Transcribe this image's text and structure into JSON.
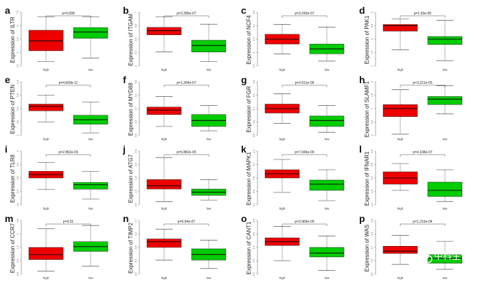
{
  "colors": {
    "high": "#ee0000",
    "low": "#00cc00",
    "line": "#333333"
  },
  "watermark": {
    "text": "中科生信",
    "icon": "wechat-icon"
  },
  "chart_data": [
    {
      "letter": "a",
      "type": "box",
      "gene": "ILTR",
      "ylabel": "Expression of ILTR",
      "categories": [
        "high",
        "low"
      ],
      "pvalue": "p=0.008",
      "ylim": [
        1.5,
        7.5
      ],
      "boxes": [
        {
          "min": 2.0,
          "q1": 3.2,
          "median": 4.3,
          "q3": 5.5,
          "max": 7.0
        },
        {
          "min": 2.4,
          "q1": 4.6,
          "median": 5.3,
          "q3": 5.8,
          "max": 7.0
        }
      ]
    },
    {
      "letter": "b",
      "type": "box",
      "gene": "ITGAM",
      "ylabel": "Expression of ITGAM",
      "categories": [
        "high",
        "low"
      ],
      "pvalue": "p=3.286e-07",
      "ylim": [
        2.0,
        7.0
      ],
      "boxes": [
        {
          "min": 3.3,
          "q1": 4.9,
          "median": 5.3,
          "q3": 5.6,
          "max": 6.6
        },
        {
          "min": 2.4,
          "q1": 3.3,
          "median": 3.9,
          "q3": 4.4,
          "max": 5.9
        }
      ]
    },
    {
      "letter": "c",
      "type": "box",
      "gene": "NCF4",
      "ylabel": "Expression of NCF4",
      "categories": [
        "high",
        "low"
      ],
      "pvalue": "p=3.243e-07",
      "ylim": [
        3.4,
        5.6
      ],
      "boxes": [
        {
          "min": 3.9,
          "q1": 4.3,
          "median": 4.5,
          "q3": 4.7,
          "max": 5.1
        },
        {
          "min": 3.6,
          "q1": 3.9,
          "median": 4.1,
          "q3": 4.3,
          "max": 5.0
        }
      ]
    },
    {
      "letter": "d",
      "type": "box",
      "gene": "PAK1",
      "ylabel": "Expression of PAK1",
      "categories": [
        "high",
        "low"
      ],
      "pvalue": "p=1.93e-05",
      "ylim": [
        1.0,
        3.0
      ],
      "boxes": [
        {
          "min": 1.6,
          "q1": 2.3,
          "median": 2.5,
          "q3": 2.55,
          "max": 2.75
        },
        {
          "min": 1.2,
          "q1": 1.8,
          "median": 2.0,
          "q3": 2.1,
          "max": 2.7
        }
      ]
    },
    {
      "letter": "e",
      "type": "box",
      "gene": "PTEN",
      "ylabel": "Expression of PTEN",
      "categories": [
        "high",
        "low"
      ],
      "pvalue": "p=4.669e-11",
      "ylim": [
        4.0,
        6.4
      ],
      "boxes": [
        {
          "min": 4.6,
          "q1": 5.1,
          "median": 5.3,
          "q3": 5.4,
          "max": 5.8
        },
        {
          "min": 4.1,
          "q1": 4.5,
          "median": 4.7,
          "q3": 4.9,
          "max": 5.5
        }
      ]
    },
    {
      "letter": "f",
      "type": "box",
      "gene": "MYD88",
      "ylabel": "Expression of MYD88",
      "categories": [
        "high",
        "low"
      ],
      "pvalue": "p=1.354e-07",
      "ylim": [
        3.8,
        5.6
      ],
      "boxes": [
        {
          "min": 4.1,
          "q1": 4.5,
          "median": 4.65,
          "q3": 4.75,
          "max": 5.1
        },
        {
          "min": 3.95,
          "q1": 4.1,
          "median": 4.3,
          "q3": 4.5,
          "max": 4.8
        }
      ]
    },
    {
      "letter": "g",
      "type": "box",
      "gene": "FGR",
      "ylabel": "Expression of FGR",
      "categories": [
        "high",
        "low"
      ],
      "pvalue": "p=2.611e-09",
      "ylim": [
        3.8,
        5.6
      ],
      "boxes": [
        {
          "min": 4.2,
          "q1": 4.55,
          "median": 4.7,
          "q3": 4.85,
          "max": 5.2
        },
        {
          "min": 3.9,
          "q1": 4.1,
          "median": 4.3,
          "q3": 4.45,
          "max": 4.8
        }
      ]
    },
    {
      "letter": "h",
      "type": "box",
      "gene": "SLAMF1",
      "ylabel": "Expression of SLAMF1",
      "categories": [
        "high",
        "low"
      ],
      "pvalue": "p=3.221e-05",
      "ylim": [
        0.0,
        2.0
      ],
      "boxes": [
        {
          "min": 0.05,
          "q1": 0.7,
          "median": 1.0,
          "q3": 1.15,
          "max": 1.7
        },
        {
          "min": 0.8,
          "q1": 1.15,
          "median": 1.35,
          "q3": 1.45,
          "max": 1.85
        }
      ]
    },
    {
      "letter": "i",
      "type": "box",
      "gene": "TLR8",
      "ylabel": "Expression of TLR8",
      "categories": [
        "high",
        "low"
      ],
      "pvalue": "p=2.862e-09",
      "ylim": [
        1.6,
        4.0
      ],
      "boxes": [
        {
          "min": 2.3,
          "q1": 2.8,
          "median": 2.95,
          "q3": 3.1,
          "max": 3.5
        },
        {
          "min": 1.85,
          "q1": 2.3,
          "median": 2.5,
          "q3": 2.6,
          "max": 3.1
        }
      ]
    },
    {
      "letter": "j",
      "type": "box",
      "gene": "ATG7",
      "ylabel": "Expression of ATG7",
      "categories": [
        "high",
        "low"
      ],
      "pvalue": "p=5.882e-05",
      "ylim": [
        0.9,
        2.6
      ],
      "boxes": [
        {
          "min": 1.0,
          "q1": 1.4,
          "median": 1.5,
          "q3": 1.7,
          "max": 2.4
        },
        {
          "min": 1.05,
          "q1": 1.2,
          "median": 1.3,
          "q3": 1.4,
          "max": 1.7
        }
      ]
    },
    {
      "letter": "k",
      "type": "box",
      "gene": "MAPK1",
      "ylabel": "Expression of MAPK1",
      "categories": [
        "high",
        "low"
      ],
      "pvalue": "p=7.049e-09",
      "ylim": [
        3.1,
        4.4
      ],
      "boxes": [
        {
          "min": 3.4,
          "q1": 3.75,
          "median": 3.85,
          "q3": 3.95,
          "max": 4.2
        },
        {
          "min": 3.2,
          "q1": 3.45,
          "median": 3.6,
          "q3": 3.7,
          "max": 3.95
        }
      ]
    },
    {
      "letter": "l",
      "type": "box",
      "gene": "IFNAR1",
      "ylabel": "Expression of IFNAR1",
      "categories": [
        "high",
        "low"
      ],
      "pvalue": "p=4.108e-07",
      "ylim": [
        1.5,
        2.8
      ],
      "boxes": [
        {
          "min": 1.85,
          "q1": 2.0,
          "median": 2.15,
          "q3": 2.3,
          "max": 2.5
        },
        {
          "min": 1.58,
          "q1": 1.7,
          "median": 1.85,
          "q3": 2.05,
          "max": 2.35
        }
      ]
    },
    {
      "letter": "m",
      "type": "box",
      "gene": "CCR7",
      "ylabel": "Expression of CCR7",
      "categories": [
        "high",
        "low"
      ],
      "pvalue": "p=0.01",
      "ylim": [
        -0.5,
        2.8
      ],
      "boxes": [
        {
          "min": -0.3,
          "q1": 0.4,
          "median": 0.7,
          "q3": 1.15,
          "max": 2.3
        },
        {
          "min": 0.0,
          "q1": 0.9,
          "median": 1.2,
          "q3": 1.5,
          "max": 2.5
        }
      ]
    },
    {
      "letter": "n",
      "type": "box",
      "gene": "TIMP2",
      "ylabel": "Expression of TIMP2",
      "categories": [
        "high",
        "low"
      ],
      "pvalue": "p=6.94e-07",
      "ylim": [
        2.8,
        4.7
      ],
      "boxes": [
        {
          "min": 3.3,
          "q1": 3.75,
          "median": 3.95,
          "q3": 4.05,
          "max": 4.4
        },
        {
          "min": 3.0,
          "q1": 3.3,
          "median": 3.5,
          "q3": 3.7,
          "max": 4.0
        }
      ]
    },
    {
      "letter": "o",
      "type": "box",
      "gene": "CANT1",
      "ylabel": "Expression of CANT1",
      "categories": [
        "high",
        "low"
      ],
      "pvalue": "p=3.969e-09",
      "ylim": [
        2.5,
        3.9
      ],
      "boxes": [
        {
          "min": 2.85,
          "q1": 3.25,
          "median": 3.35,
          "q3": 3.45,
          "max": 3.75
        },
        {
          "min": 2.6,
          "q1": 2.95,
          "median": 3.05,
          "q3": 3.2,
          "max": 3.5
        }
      ]
    },
    {
      "letter": "p",
      "type": "box",
      "gene": "WAS",
      "ylabel": "Expression of WAS",
      "categories": [
        "high",
        "low"
      ],
      "pvalue": "p=1.219e-04",
      "ylim": [
        2.6,
        4.8
      ],
      "boxes": [
        {
          "min": 3.0,
          "q1": 3.45,
          "median": 3.55,
          "q3": 3.75,
          "max": 4.2
        },
        {
          "min": 2.8,
          "q1": 3.05,
          "median": 3.25,
          "q3": 3.4,
          "max": 3.95
        }
      ]
    }
  ]
}
